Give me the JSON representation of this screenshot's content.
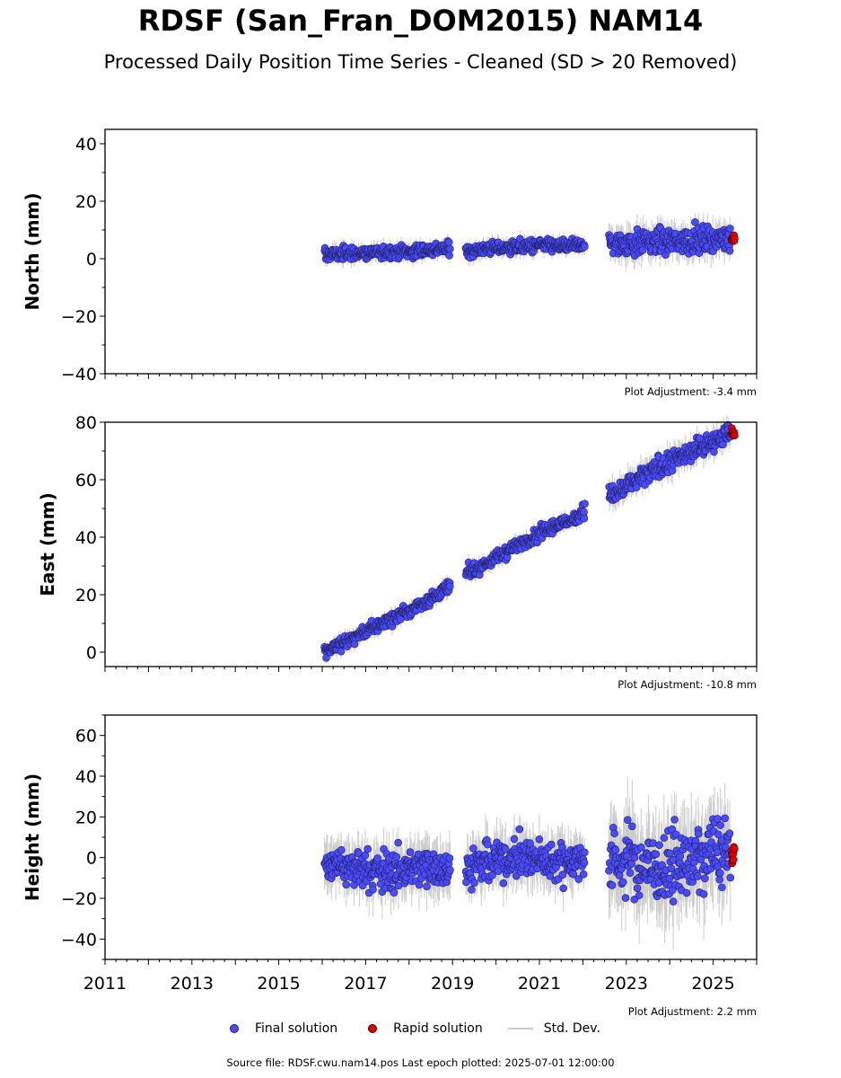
{
  "title": "RDSF (San_Fran_DOM2015) NAM14",
  "subtitle": "Processed Daily Position Time Series - Cleaned (SD > 20 Removed)",
  "colors": {
    "final": "#4a4aff",
    "rapid": "#e00000",
    "std": "#cccccc"
  },
  "legend": {
    "final": "Final solution",
    "rapid": "Rapid solution",
    "std": "Std. Dev."
  },
  "source_text": "Source file: RDSF.cwu.nam14.pos  Last epoch plotted: 2025-07-01 12:00:00",
  "chart_data": [
    {
      "type": "scatter",
      "panel": "north",
      "ylabel": "North (mm)",
      "ylim": [
        -40,
        45
      ],
      "yticks": [
        -40,
        -20,
        0,
        20,
        40
      ],
      "xlim": [
        2011,
        2026
      ],
      "adjustment": "Plot Adjustment: -3.4 mm",
      "series": [
        {
          "name": "Final solution",
          "x": [
            2016.1,
            2016.5,
            2017.0,
            2017.5,
            2018.0,
            2018.5,
            2018.95,
            2019.3,
            2019.8,
            2020.3,
            2020.8,
            2021.3,
            2021.8,
            2022.05,
            2022.6,
            2023.0,
            2023.5,
            2024.0,
            2024.5,
            2025.0,
            2025.4
          ],
          "y": [
            1.5,
            1.8,
            2.0,
            2.5,
            2.5,
            3.0,
            3.5,
            3.0,
            3.5,
            4.0,
            4.5,
            4.5,
            4.5,
            5.0,
            5.0,
            5.5,
            6.0,
            6.0,
            6.5,
            7.0,
            7.0
          ]
        },
        {
          "name": "Rapid solution",
          "x": [
            2025.42,
            2025.46,
            2025.5
          ],
          "y": [
            7.0,
            7.5,
            7.0
          ]
        }
      ]
    },
    {
      "type": "scatter",
      "panel": "east",
      "ylabel": "East (mm)",
      "ylim": [
        -5,
        80
      ],
      "yticks": [
        0,
        20,
        40,
        60,
        80
      ],
      "xlim": [
        2011,
        2026
      ],
      "adjustment": "Plot Adjustment: -10.8 mm",
      "series": [
        {
          "name": "Final solution",
          "x": [
            2016.1,
            2016.5,
            2017.0,
            2017.5,
            2018.0,
            2018.5,
            2018.95,
            2019.3,
            2019.8,
            2020.3,
            2020.8,
            2021.3,
            2021.8,
            2022.05,
            2022.6,
            2023.0,
            2023.5,
            2024.0,
            2024.5,
            2025.0,
            2025.4
          ],
          "y": [
            0.5,
            3.5,
            7.0,
            11.0,
            14.5,
            18.5,
            23.0,
            27.5,
            31.0,
            35.5,
            39.5,
            43.5,
            46.5,
            50.0,
            54.0,
            57.5,
            62.0,
            66.0,
            70.0,
            73.5,
            76.5
          ]
        },
        {
          "name": "Rapid solution",
          "x": [
            2025.42,
            2025.46,
            2025.5
          ],
          "y": [
            76.0,
            77.0,
            76.5
          ]
        }
      ]
    },
    {
      "type": "scatter",
      "panel": "height",
      "ylabel": "Height (mm)",
      "ylim": [
        -50,
        70
      ],
      "yticks": [
        -40,
        -20,
        0,
        20,
        40,
        60
      ],
      "xlim": [
        2011,
        2026
      ],
      "xticks": [
        2011,
        2013,
        2015,
        2017,
        2019,
        2021,
        2023,
        2025
      ],
      "adjustment": "Plot Adjustment: 2.2 mm",
      "series": [
        {
          "name": "Final solution",
          "x": [
            2016.1,
            2016.5,
            2017.0,
            2017.5,
            2018.0,
            2018.5,
            2018.95,
            2019.3,
            2019.8,
            2020.3,
            2020.8,
            2021.3,
            2021.8,
            2022.05,
            2022.6,
            2023.0,
            2023.5,
            2024.0,
            2024.5,
            2025.0,
            2025.4
          ],
          "y": [
            -3,
            -5,
            -6,
            -7,
            -5,
            -4,
            -5,
            -4,
            -3,
            0,
            0,
            -2,
            -1,
            -1,
            -2,
            0,
            -5,
            -5,
            -2,
            3,
            3
          ]
        },
        {
          "name": "Rapid solution",
          "x": [
            2025.42,
            2025.46,
            2025.5
          ],
          "y": [
            2,
            3,
            1
          ]
        }
      ]
    }
  ]
}
